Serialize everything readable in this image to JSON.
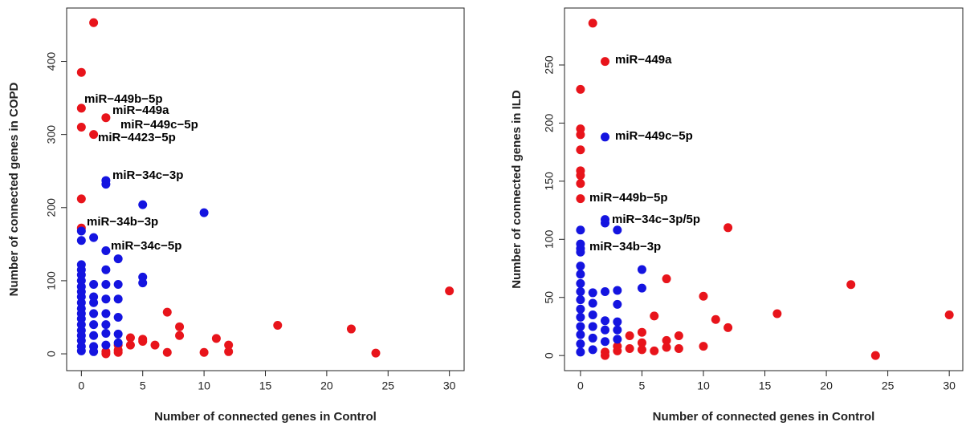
{
  "chart_data": [
    {
      "type": "scatter",
      "xlabel": "Number of connected genes in Control",
      "ylabel": "Number of connected genes in COPD",
      "xlim": [
        -1.2,
        31.2
      ],
      "ylim": [
        -23,
        473
      ],
      "xticks": [
        0,
        5,
        10,
        15,
        20,
        25,
        30
      ],
      "yticks": [
        0,
        100,
        200,
        300,
        400
      ],
      "annotations": [
        "miR−449b−5p",
        "miR−449a",
        "miR−449c−5p",
        "miR−4423−5p",
        "miR−34c−3p",
        "miR−34b−3p",
        "miR−34c−5p"
      ],
      "series": [
        {
          "color": "#e8141b",
          "x": [
            1,
            0,
            0,
            2,
            0,
            1,
            0,
            0,
            7,
            8,
            8,
            5,
            4,
            4,
            5,
            6,
            3,
            3,
            2,
            3,
            2,
            7,
            10,
            11,
            12,
            12,
            16,
            22,
            24,
            30
          ],
          "values": [
            453,
            385,
            336,
            323,
            310,
            300,
            212,
            172,
            57,
            37,
            25,
            20,
            22,
            12,
            17,
            12,
            12,
            5,
            3,
            2,
            0,
            2,
            2,
            21,
            12,
            3,
            39,
            34,
            1,
            86
          ]
        },
        {
          "color": "#1414e0",
          "x": [
            2,
            2,
            5,
            10,
            0,
            1,
            0,
            2,
            3,
            5,
            5,
            0,
            0,
            0,
            0,
            0,
            0,
            0,
            0,
            0,
            0,
            0,
            0,
            0,
            0,
            0,
            0,
            0,
            1,
            1,
            1,
            1,
            1,
            1,
            1,
            1,
            2,
            2,
            2,
            2,
            2,
            2,
            2,
            3,
            3,
            3,
            3,
            3
          ],
          "values": [
            237,
            232,
            204,
            193,
            168,
            159,
            155,
            141,
            130,
            105,
            97,
            122,
            115,
            108,
            100,
            92,
            85,
            78,
            70,
            62,
            55,
            48,
            40,
            32,
            25,
            18,
            10,
            4,
            95,
            78,
            70,
            55,
            40,
            25,
            10,
            3,
            115,
            95,
            75,
            55,
            40,
            28,
            12,
            95,
            75,
            50,
            27,
            15
          ]
        }
      ]
    },
    {
      "type": "scatter",
      "xlabel": "Number of connected genes in Control",
      "ylabel": "Number of connected genes in ILD",
      "xlim": [
        -1.3,
        31.1
      ],
      "ylim": [
        -13,
        299
      ],
      "xticks": [
        0,
        5,
        10,
        15,
        20,
        25,
        30
      ],
      "yticks": [
        0,
        50,
        100,
        150,
        200,
        250
      ],
      "annotations": [
        "miR−449a",
        "miR−449c−5p",
        "miR−449b−5p",
        "miR−34c−3p/5p",
        "miR−34b−3p"
      ],
      "series": [
        {
          "color": "#e8141b",
          "x": [
            1,
            2,
            0,
            0,
            0,
            0,
            0,
            0,
            0,
            0,
            12,
            7,
            10,
            22,
            16,
            30,
            11,
            12,
            8,
            6,
            4,
            5,
            5,
            3,
            3,
            2,
            4,
            5,
            6,
            7,
            7,
            8,
            10,
            24,
            2
          ],
          "values": [
            286,
            253,
            229,
            195,
            190,
            177,
            159,
            155,
            148,
            135,
            110,
            66,
            51,
            61,
            36,
            35,
            31,
            24,
            17,
            34,
            17,
            20,
            11,
            8,
            4,
            0,
            6,
            5,
            4,
            13,
            7,
            6,
            8,
            0,
            3
          ]
        },
        {
          "color": "#1414e0",
          "x": [
            2,
            2,
            2,
            3,
            0,
            0,
            0,
            0,
            5,
            5,
            0,
            0,
            0,
            0,
            0,
            0,
            0,
            0,
            0,
            0,
            0,
            1,
            1,
            1,
            1,
            1,
            1,
            2,
            2,
            2,
            2,
            3,
            3,
            3,
            3,
            3
          ],
          "values": [
            188,
            117,
            114,
            108,
            108,
            96,
            92,
            89,
            74,
            58,
            77,
            70,
            62,
            55,
            48,
            40,
            33,
            25,
            18,
            10,
            3,
            54,
            45,
            35,
            25,
            15,
            5,
            55,
            30,
            22,
            12,
            56,
            44,
            29,
            22,
            14
          ]
        }
      ]
    }
  ]
}
